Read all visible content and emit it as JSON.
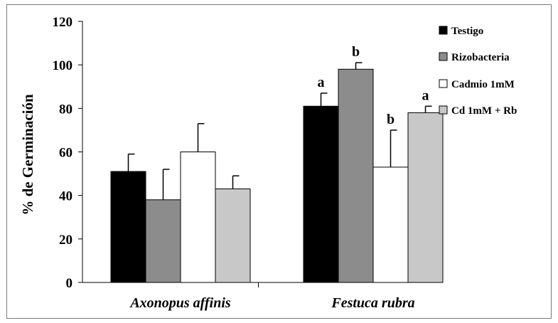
{
  "chart_data": {
    "type": "bar",
    "title": "",
    "ylabel": "% de Germinación",
    "xlabel": "",
    "ylim": [
      0,
      120
    ],
    "yticks": [
      0,
      20,
      40,
      60,
      80,
      100,
      120
    ],
    "grid": false,
    "legend_position": "right",
    "categories": [
      "Axonopus affinis",
      "Festuca rubra"
    ],
    "series": [
      {
        "name": "Testigo",
        "color": "#000000",
        "values": [
          51,
          81
        ],
        "errors": [
          8,
          6
        ],
        "labels": [
          "",
          "a"
        ]
      },
      {
        "name": "Rizobacteria",
        "color": "#8c8c8c",
        "values": [
          38,
          98
        ],
        "errors": [
          14,
          3
        ],
        "labels": [
          "",
          "b"
        ]
      },
      {
        "name": "Cadmio 1mM",
        "color": "#ffffff",
        "values": [
          60,
          53
        ],
        "errors": [
          13,
          17
        ],
        "labels": [
          "",
          "b"
        ]
      },
      {
        "name": "Cd 1mM + Rb",
        "color": "#c8c8c8",
        "values": [
          43,
          78
        ],
        "errors": [
          6,
          3
        ],
        "labels": [
          "",
          "a"
        ]
      }
    ]
  }
}
